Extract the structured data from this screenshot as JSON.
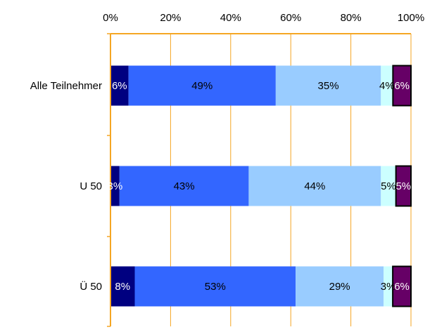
{
  "chart_data": {
    "type": "bar",
    "orientation": "horizontal",
    "stacked": true,
    "normalized": true,
    "title": "",
    "xlabel": "",
    "ylabel": "",
    "xlim": [
      0,
      100
    ],
    "x_ticks": [
      "0%",
      "20%",
      "40%",
      "60%",
      "80%",
      "100%"
    ],
    "x_tick_values": [
      0,
      20,
      40,
      60,
      80,
      100
    ],
    "grid": true,
    "legend": "none",
    "categories": [
      "Alle Teilnehmer",
      "U 50",
      "Ü 50"
    ],
    "series": [
      {
        "color": "#000080",
        "label_color": "#ffffff",
        "values": [
          6,
          3,
          8
        ],
        "labels": [
          "6%",
          "3%",
          "8%"
        ]
      },
      {
        "color": "#3366ff",
        "label_color": "#000000",
        "values": [
          49,
          43,
          53
        ],
        "labels": [
          "49%",
          "43%",
          "53%"
        ]
      },
      {
        "color": "#99ccff",
        "label_color": "#000000",
        "values": [
          35,
          44,
          29
        ],
        "labels": [
          "35%",
          "44%",
          "29%"
        ]
      },
      {
        "color": "#ccffff",
        "label_color": "#000000",
        "values": [
          4,
          5,
          3
        ],
        "labels": [
          "4%",
          "5%",
          "3%"
        ]
      },
      {
        "color": "#660066",
        "label_color": "#ffffff",
        "values": [
          6,
          5,
          6
        ],
        "labels": [
          "6%",
          "5%",
          "6%"
        ]
      }
    ],
    "colors": {
      "axis": "#f5a623",
      "grid": "#f5a623"
    }
  }
}
